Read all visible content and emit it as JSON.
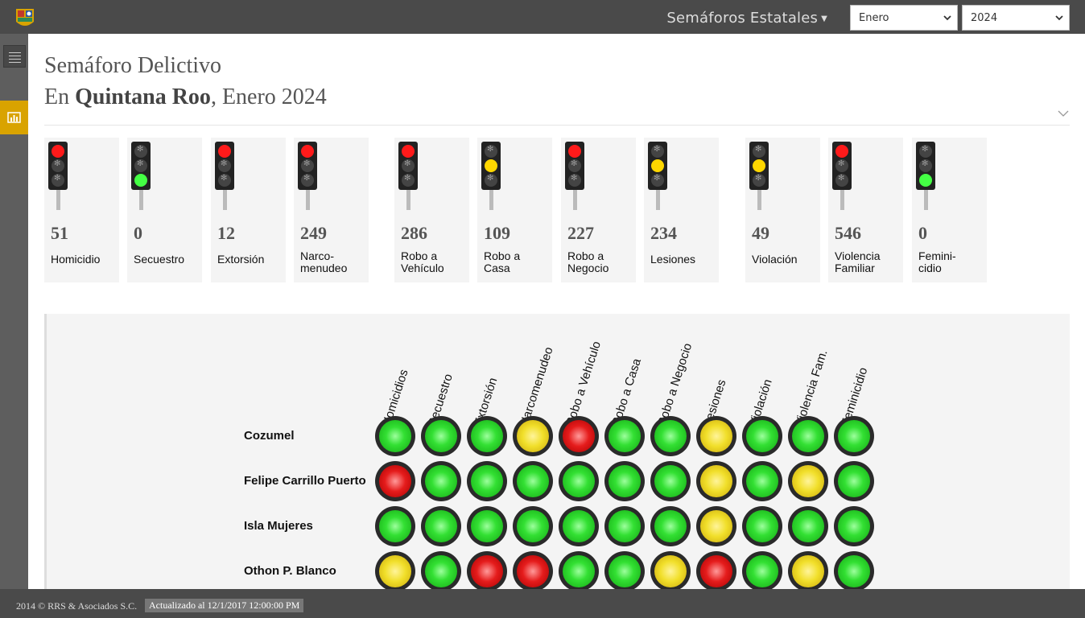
{
  "topbar": {
    "title": "Semáforos Estatales",
    "month_select": "Enero",
    "year_select": "2024"
  },
  "header": {
    "title": "Semáforo Delictivo",
    "sub_prefix": "En ",
    "sub_state": "Quintana Roo",
    "sub_rest": ", Enero 2024"
  },
  "cards": [
    {
      "value": "51",
      "label": "Homicidio",
      "light": "red"
    },
    {
      "value": "0",
      "label": "Secuestro",
      "light": "green"
    },
    {
      "value": "12",
      "label": "Extorsión",
      "light": "red"
    },
    {
      "value": "249",
      "label": "Narco-\nmenudeo",
      "light": "red"
    },
    {
      "value": "286",
      "label": "Robo a\nVehículo",
      "light": "red"
    },
    {
      "value": "109",
      "label": "Robo a\nCasa",
      "light": "yellow"
    },
    {
      "value": "227",
      "label": "Robo a\nNegocio",
      "light": "red"
    },
    {
      "value": "234",
      "label": "Lesiones",
      "light": "yellow"
    },
    {
      "value": "49",
      "label": "Violación",
      "light": "yellow"
    },
    {
      "value": "546",
      "label": "Violencia\nFamiliar",
      "light": "red"
    },
    {
      "value": "0",
      "label": "Femini-\ncidio",
      "light": "green"
    }
  ],
  "matrix": {
    "columns": [
      "Homicidios",
      "Secuestro",
      "Extorsión",
      "Narcomenudeo",
      "Robo a Vehículo",
      "Robo a Casa",
      "Robo a Negocio",
      "Lesiones",
      "Violación",
      "Violencia Fam.",
      "Feminicidio"
    ],
    "rows": [
      {
        "name": "Cozumel",
        "lights": [
          "green",
          "green",
          "green",
          "yellow",
          "red",
          "green",
          "green",
          "yellow",
          "green",
          "green",
          "green"
        ]
      },
      {
        "name": "Felipe Carrillo Puerto",
        "lights": [
          "red",
          "green",
          "green",
          "green",
          "green",
          "green",
          "green",
          "yellow",
          "green",
          "yellow",
          "green"
        ]
      },
      {
        "name": "Isla Mujeres",
        "lights": [
          "green",
          "green",
          "green",
          "green",
          "green",
          "green",
          "green",
          "yellow",
          "green",
          "green",
          "green"
        ]
      },
      {
        "name": "Othon P. Blanco",
        "lights": [
          "yellow",
          "green",
          "red",
          "red",
          "green",
          "green",
          "yellow",
          "red",
          "green",
          "yellow",
          "green"
        ]
      }
    ]
  },
  "footer": {
    "copyright": "2014 © RRS & Asociados S.C.",
    "updated": "Actualizado al 12/1/2017 12:00:00 PM"
  }
}
